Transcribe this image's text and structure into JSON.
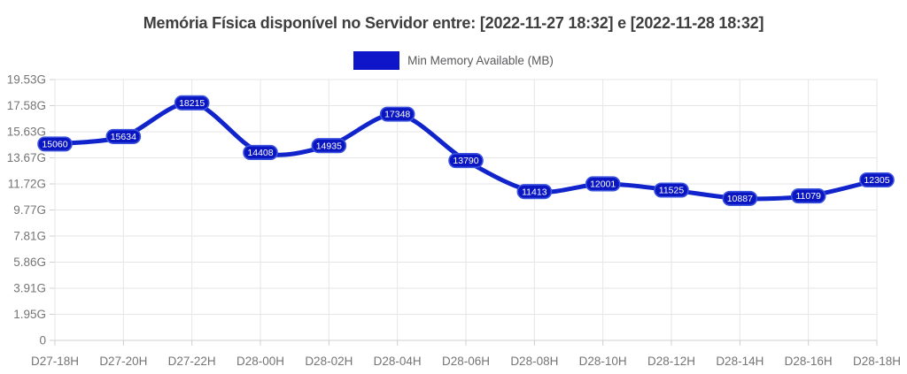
{
  "chart_data": {
    "type": "line",
    "title": "Memória Física disponível no Servidor entre: [2022-11-27 18:32] e [2022-11-28 18:32]",
    "legend_entries": [
      "Min Memory Available (MB)"
    ],
    "legend_position": "top",
    "categories": [
      "D27-18H",
      "D27-20H",
      "D27-22H",
      "D28-00H",
      "D28-02H",
      "D28-04H",
      "D28-06H",
      "D28-08H",
      "D28-10H",
      "D28-12H",
      "D28-14H",
      "D28-16H",
      "D28-18H"
    ],
    "series": [
      {
        "name": "Min Memory Available (MB)",
        "values": [
          15060,
          15634,
          18215,
          14408,
          14935,
          17348,
          13790,
          11413,
          12001,
          11525,
          10887,
          11079,
          12305
        ]
      }
    ],
    "point_labels_shown": true,
    "xlabel": "",
    "ylabel": "",
    "ylim": [
      0,
      20000
    ],
    "y_tick_step_mb": 2000,
    "y_tick_labels": [
      "0",
      "1.95G",
      "3.91G",
      "5.86G",
      "7.81G",
      "9.77G",
      "11.72G",
      "13.67G",
      "15.63G",
      "17.58G",
      "19.53G"
    ],
    "grid": true,
    "colors": {
      "series_line": "#1123cb",
      "legend_swatch": "#0f15c8",
      "point_label_bg": "#0a16c2",
      "point_label_border": "#3c53de",
      "point_label_text": "#ffffff",
      "grid_line": "#e6e6e6",
      "axis_line": "#cfcfcf",
      "tick_text": "#757575",
      "title_text": "#3e3e3e",
      "legend_text": "#58595b"
    }
  }
}
